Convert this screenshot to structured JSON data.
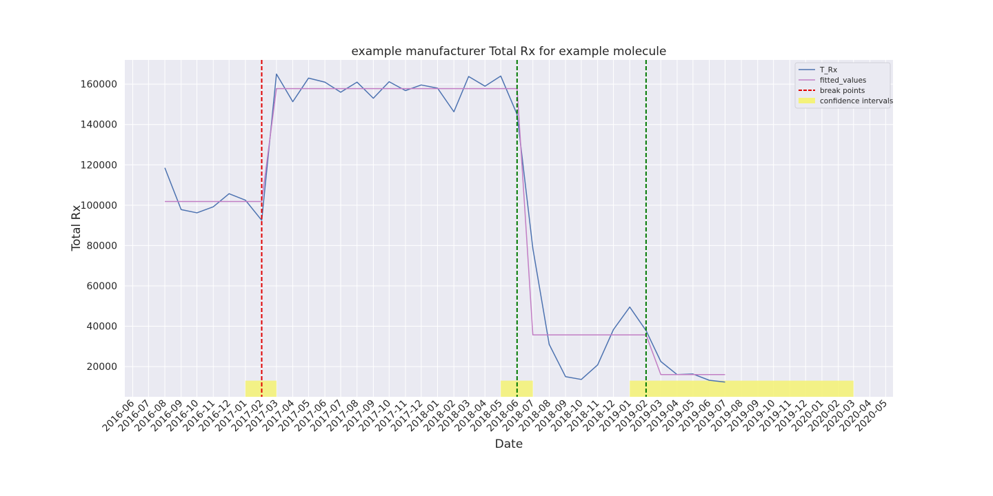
{
  "chart_data": {
    "type": "line",
    "title": "example manufacturer Total Rx for example molecule",
    "xlabel": "Date",
    "ylabel": "Total Rx",
    "x_ticks": [
      "2016-06",
      "2016-07",
      "2016-08",
      "2016-09",
      "2016-10",
      "2016-11",
      "2016-12",
      "2017-01",
      "2017-02",
      "2017-03",
      "2017-04",
      "2017-05",
      "2017-06",
      "2017-07",
      "2017-08",
      "2017-09",
      "2017-10",
      "2017-11",
      "2017-12",
      "2018-01",
      "2018-02",
      "2018-03",
      "2018-04",
      "2018-05",
      "2018-06",
      "2018-07",
      "2018-08",
      "2018-09",
      "2018-10",
      "2018-11",
      "2018-12",
      "2019-01",
      "2019-02",
      "2019-03",
      "2019-04",
      "2019-05",
      "2019-06",
      "2019-07",
      "2019-08",
      "2019-09",
      "2019-10",
      "2019-11",
      "2019-12",
      "2020-01",
      "2020-02",
      "2020-03",
      "2020-04",
      "2020-05"
    ],
    "y_ticks": [
      20000,
      40000,
      60000,
      80000,
      100000,
      120000,
      140000,
      160000
    ],
    "xlim": [
      "2016-05-17",
      "2020-05-15"
    ],
    "ylim": [
      5000,
      172000
    ],
    "grid": true,
    "legend_position": "top-right",
    "colors": {
      "background": "#eaeaf2",
      "grid": "#ffffff",
      "t_rx": "#4c72b0",
      "fitted": "#c27ec4",
      "break_red": "#e00000",
      "break_green": "#007a00",
      "confidence": "#f4f27a"
    },
    "series": [
      {
        "name": "T_Rx",
        "style": "solid",
        "x": [
          "2016-08-01",
          "2016-09-01",
          "2016-10-01",
          "2016-11-01",
          "2016-12-01",
          "2017-01-01",
          "2017-02-01",
          "2017-03-01",
          "2017-04-01",
          "2017-05-01",
          "2017-06-01",
          "2017-07-01",
          "2017-08-01",
          "2017-09-01",
          "2017-10-01",
          "2017-11-01",
          "2017-12-01",
          "2018-01-01",
          "2018-02-01",
          "2018-03-01",
          "2018-04-01",
          "2018-05-01",
          "2018-06-01",
          "2018-07-01",
          "2018-08-01",
          "2018-09-01",
          "2018-10-01",
          "2018-11-01",
          "2018-12-01",
          "2019-01-01",
          "2019-02-01",
          "2019-03-01",
          "2019-04-01",
          "2019-05-01",
          "2019-06-01",
          "2019-07-01"
        ],
        "values": [
          118500,
          97800,
          96200,
          99200,
          105700,
          102500,
          92500,
          165000,
          151300,
          163000,
          161000,
          156000,
          161000,
          153000,
          161200,
          156800,
          159600,
          158000,
          146300,
          163800,
          159000,
          164000,
          145000,
          78500,
          31000,
          15000,
          13600,
          20800,
          38300,
          49500,
          37800,
          22500,
          16000,
          16300,
          13200,
          12300
        ]
      },
      {
        "name": "fitted_values",
        "style": "solid",
        "x": [
          "2016-08-01",
          "2017-02-01",
          "2017-03-01",
          "2018-06-01",
          "2018-07-01",
          "2019-02-01",
          "2019-03-01",
          "2019-07-01"
        ],
        "values": [
          101800,
          101800,
          157800,
          157800,
          35700,
          35700,
          16000,
          16000
        ]
      }
    ],
    "break_points": [
      {
        "date": "2017-02-01",
        "color": "red"
      },
      {
        "date": "2018-06-01",
        "color": "green"
      },
      {
        "date": "2019-02-01",
        "color": "green"
      }
    ],
    "confidence_intervals": [
      {
        "start": "2017-01-01",
        "end": "2017-03-01"
      },
      {
        "start": "2018-05-01",
        "end": "2018-07-01"
      },
      {
        "start": "2019-01-01",
        "end": "2020-03-01"
      }
    ],
    "confidence_y": [
      5000,
      13000
    ],
    "legend": [
      {
        "label": "T_Rx",
        "kind": "line",
        "color": "#4c72b0",
        "dash": false
      },
      {
        "label": "fitted_values",
        "kind": "line",
        "color": "#c27ec4",
        "dash": false
      },
      {
        "label": "break points",
        "kind": "line",
        "color": "#e00000",
        "dash": true
      },
      {
        "label": "confidence intervals",
        "kind": "patch",
        "color": "#f4f27a",
        "dash": false
      }
    ]
  }
}
